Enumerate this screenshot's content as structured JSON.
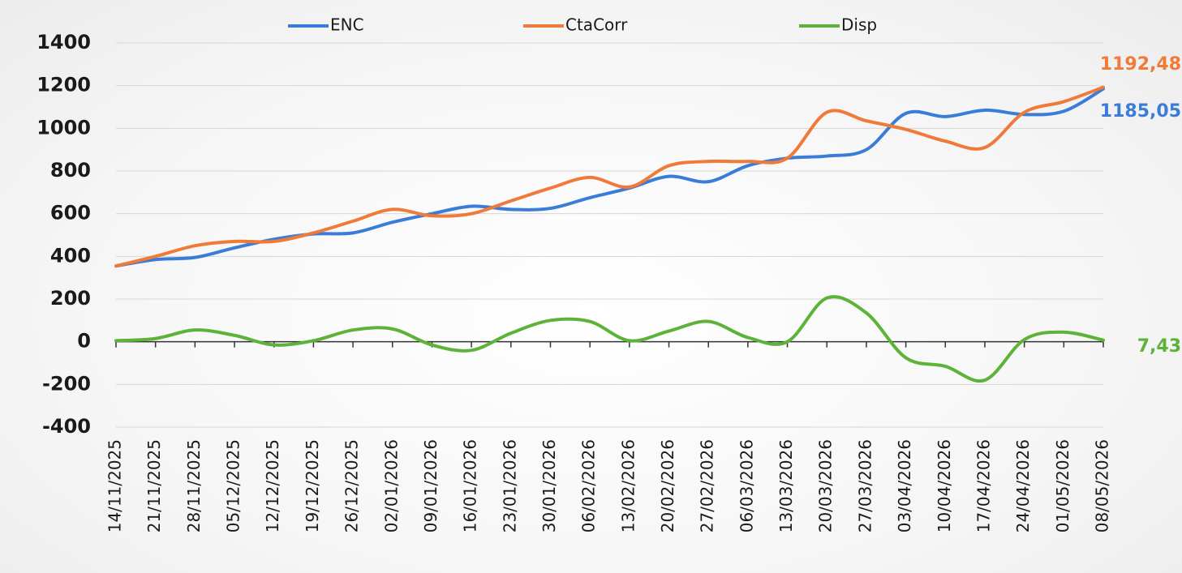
{
  "chart_data": {
    "type": "line",
    "categories": [
      "14/11/2025",
      "21/11/2025",
      "28/11/2025",
      "05/12/2025",
      "12/12/2025",
      "19/12/2025",
      "26/12/2025",
      "02/01/2026",
      "09/01/2026",
      "16/01/2026",
      "23/01/2026",
      "30/01/2026",
      "06/02/2026",
      "13/02/2026",
      "20/02/2026",
      "27/02/2026",
      "06/03/2026",
      "13/03/2026",
      "20/03/2026",
      "27/03/2026",
      "03/04/2026",
      "10/04/2026",
      "17/04/2026",
      "24/04/2026",
      "01/05/2026",
      "08/05/2026"
    ],
    "series": [
      {
        "name": "ENC",
        "color": "#3a7dd8",
        "values": [
          355,
          385,
          395,
          440,
          480,
          505,
          510,
          560,
          600,
          635,
          620,
          625,
          675,
          720,
          775,
          750,
          825,
          860,
          870,
          900,
          1070,
          1055,
          1085,
          1065,
          1080,
          1185.05
        ],
        "value_labels": [
          null,
          null,
          null,
          null,
          null,
          null,
          null,
          null,
          null,
          null,
          null,
          null,
          null,
          null,
          null,
          null,
          null,
          null,
          null,
          null,
          null,
          null,
          null,
          null,
          null,
          "1185,05"
        ]
      },
      {
        "name": "CtaCorr",
        "color": "#f07a38",
        "values": [
          355,
          400,
          450,
          470,
          470,
          510,
          565,
          620,
          590,
          600,
          660,
          720,
          770,
          725,
          825,
          845,
          845,
          860,
          1075,
          1035,
          995,
          940,
          910,
          1075,
          1125,
          1192.48
        ],
        "value_labels": [
          null,
          null,
          null,
          null,
          null,
          null,
          null,
          null,
          null,
          null,
          null,
          null,
          null,
          null,
          null,
          null,
          null,
          null,
          null,
          null,
          null,
          null,
          null,
          null,
          null,
          "1192,48"
        ]
      },
      {
        "name": "Disp",
        "color": "#5cb338",
        "values": [
          5,
          15,
          55,
          30,
          -15,
          5,
          55,
          60,
          -15,
          -40,
          40,
          100,
          95,
          5,
          50,
          95,
          20,
          0,
          205,
          135,
          -75,
          -115,
          -180,
          10,
          45,
          7.43
        ],
        "value_labels": [
          null,
          null,
          null,
          null,
          null,
          null,
          null,
          null,
          null,
          null,
          null,
          null,
          null,
          null,
          null,
          null,
          null,
          null,
          null,
          null,
          null,
          null,
          null,
          null,
          null,
          "7,43"
        ]
      }
    ],
    "ylim": [
      -400,
      1400
    ],
    "yticks": [
      -400,
      -200,
      0,
      200,
      400,
      600,
      800,
      1000,
      1200,
      1400
    ],
    "grid": true,
    "legend": "top"
  }
}
